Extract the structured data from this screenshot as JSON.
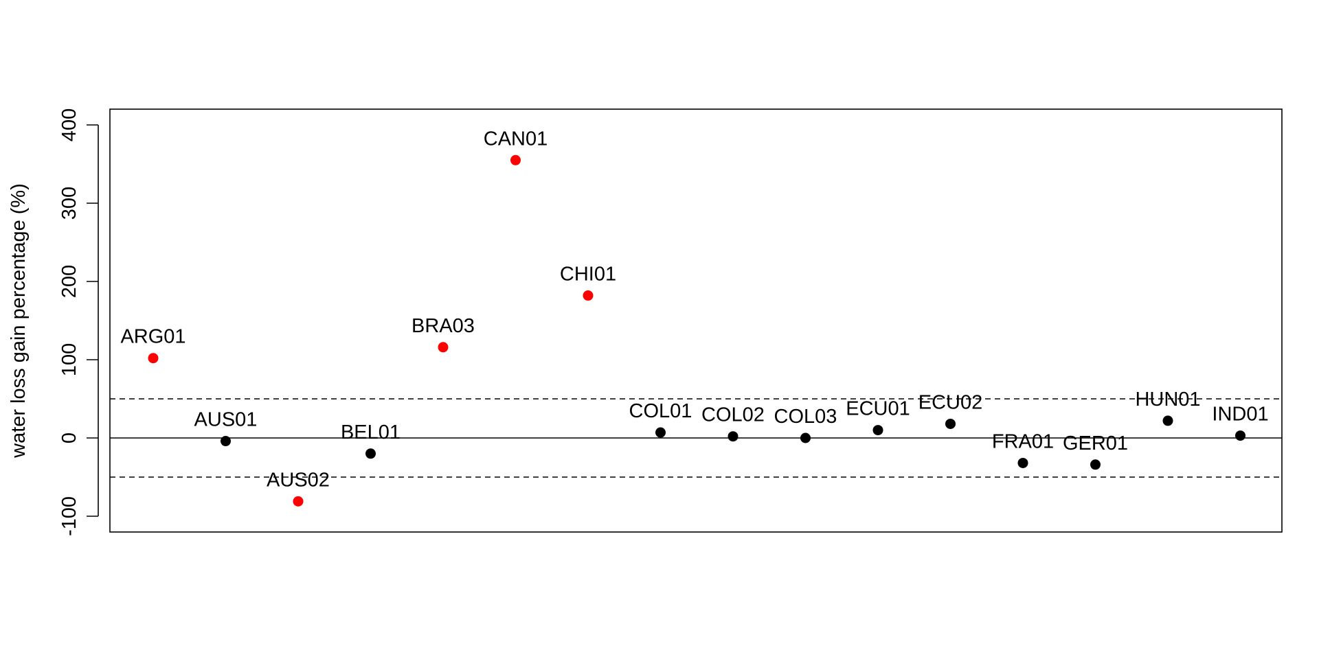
{
  "chart_data": {
    "type": "scatter",
    "title": "",
    "xlabel": "",
    "ylabel": "water loss gain percentage (%)",
    "ylim": [
      -120,
      420
    ],
    "yticks": [
      -100,
      0,
      100,
      200,
      300,
      400
    ],
    "grid": false,
    "reference_lines": [
      {
        "y": 0,
        "style": "solid"
      },
      {
        "y": 50,
        "style": "dashed"
      },
      {
        "y": -50,
        "style": "dashed"
      }
    ],
    "colors": {
      "outside_band": "#ff0000",
      "inside_band": "#000000"
    },
    "points": [
      {
        "label": "ARG01",
        "value": 102,
        "color": "#ff0000"
      },
      {
        "label": "AUS01",
        "value": -4,
        "color": "#000000"
      },
      {
        "label": "AUS02",
        "value": -81,
        "color": "#ff0000"
      },
      {
        "label": "BEL01",
        "value": -20,
        "color": "#000000"
      },
      {
        "label": "BRA03",
        "value": 116,
        "color": "#ff0000"
      },
      {
        "label": "CAN01",
        "value": 355,
        "color": "#ff0000"
      },
      {
        "label": "CHI01",
        "value": 182,
        "color": "#ff0000"
      },
      {
        "label": "COL01",
        "value": 7,
        "color": "#000000"
      },
      {
        "label": "COL02",
        "value": 2,
        "color": "#000000"
      },
      {
        "label": "COL03",
        "value": 0,
        "color": "#000000"
      },
      {
        "label": "ECU01",
        "value": 10,
        "color": "#000000"
      },
      {
        "label": "ECU02",
        "value": 18,
        "color": "#000000"
      },
      {
        "label": "FRA01",
        "value": -32,
        "color": "#000000"
      },
      {
        "label": "GER01",
        "value": -34,
        "color": "#000000"
      },
      {
        "label": "HUN01",
        "value": 22,
        "color": "#000000"
      },
      {
        "label": "IND01",
        "value": 3,
        "color": "#000000"
      }
    ]
  }
}
